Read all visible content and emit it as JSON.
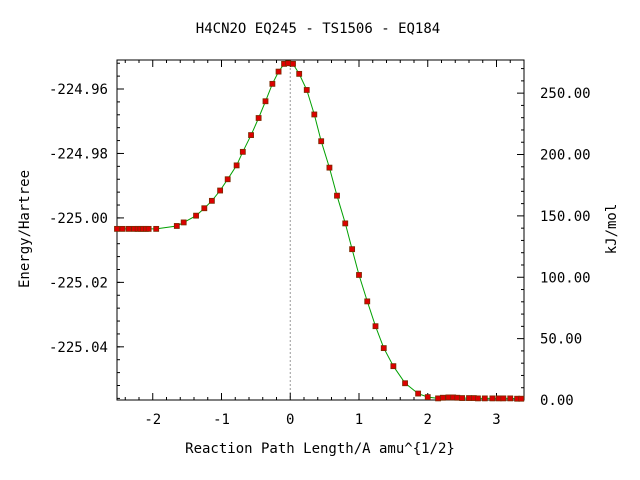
{
  "chart_data": {
    "type": "line",
    "title": "H4CN2O   EQ245 - TS1506 - EQ184",
    "xlabel": "Reaction Path Length/A amu^{1/2}",
    "ylabel": "Energy/Hartree",
    "y2label": "kJ/mol",
    "xlim": [
      -2.52,
      3.4
    ],
    "ylim": [
      -225.0565,
      -224.951
    ],
    "y2lim": [
      0.0,
      277.0
    ],
    "xticks": [
      -2,
      -1,
      0,
      1,
      2,
      3
    ],
    "xtick_labels": [
      "-2",
      "-1",
      "0",
      "1",
      "2",
      "3"
    ],
    "yticks": [
      -224.96,
      -224.98,
      -225.0,
      -225.02,
      -225.04
    ],
    "ytick_labels": [
      "-224.96",
      "-224.98",
      "-225.00",
      "-225.02",
      "-225.04"
    ],
    "y2ticks": [
      250.0,
      200.0,
      150.0,
      100.0,
      50.0,
      0.0
    ],
    "y2tick_labels": [
      "250.00",
      "200.00",
      "150.00",
      "100.00",
      "50.00",
      "0.00"
    ],
    "transition_state_x": 0.0,
    "grid": false,
    "colors": {
      "line": "#00a000",
      "marker": "#dd0000",
      "marker_edge": "#7a2a00",
      "ts_marker": "#999999"
    },
    "series": [
      {
        "x": [
          -2.52,
          -2.44,
          -2.35,
          -2.27,
          -2.22,
          -2.18,
          -2.14,
          -2.1,
          -2.06,
          -1.95,
          -1.65,
          -1.55,
          -1.37,
          -1.25,
          -1.14,
          -1.02,
          -0.91,
          -0.78,
          -0.69,
          -0.57,
          -0.46,
          -0.36,
          -0.26,
          -0.17,
          -0.09,
          -0.03,
          0.04,
          0.13,
          0.24,
          0.35,
          0.45,
          0.57,
          0.68,
          0.8,
          0.9,
          1.0,
          1.12,
          1.24,
          1.36,
          1.5,
          1.67,
          1.86,
          2.0,
          2.15,
          2.22,
          2.3,
          2.37,
          2.43,
          2.5,
          2.6,
          2.67,
          2.73,
          2.83,
          2.94,
          3.03,
          3.1,
          3.2,
          3.3,
          3.36
        ],
        "y": [
          -225.0034,
          -225.0034,
          -225.0034,
          -225.0034,
          -225.0034,
          -225.0034,
          -225.0034,
          -225.0034,
          -225.0034,
          -225.0034,
          -225.0025,
          -225.0014,
          -224.9993,
          -224.997,
          -224.9947,
          -224.9915,
          -224.988,
          -224.9837,
          -224.9795,
          -224.9743,
          -224.969,
          -224.9638,
          -224.9584,
          -224.9546,
          -224.9522,
          -224.952,
          -224.9522,
          -224.9553,
          -224.9603,
          -224.9679,
          -224.9762,
          -224.9844,
          -224.9931,
          -225.0017,
          -225.0097,
          -225.0177,
          -225.0259,
          -225.0336,
          -225.0404,
          -225.046,
          -225.0513,
          -225.0545,
          -225.0556,
          -225.056,
          -225.0558,
          -225.0557,
          -225.0557,
          -225.0558,
          -225.0559,
          -225.0559,
          -225.0559,
          -225.056,
          -225.056,
          -225.056,
          -225.056,
          -225.056,
          -225.056,
          -225.0561,
          -225.0561
        ]
      }
    ]
  }
}
